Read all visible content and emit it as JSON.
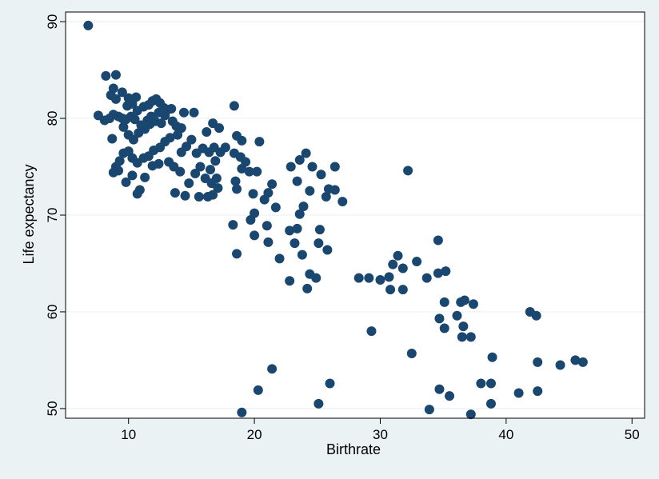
{
  "chart_data": {
    "type": "scatter",
    "title": "",
    "xlabel": "Birthrate",
    "ylabel": "Life expectancy",
    "xlim": [
      5,
      51
    ],
    "ylim": [
      49,
      91
    ],
    "xticks": [
      10,
      20,
      30,
      40,
      50
    ],
    "yticks": [
      50,
      60,
      70,
      80,
      90
    ],
    "grid": "horizontal",
    "marker_color": "#1a476f",
    "plot_background": "#ffffff",
    "outer_background": "#eaf2f3",
    "gridline_color": "#eaf2f3",
    "points": [
      [
        6.8,
        89.6
      ],
      [
        8.2,
        84.4
      ],
      [
        9.0,
        84.5
      ],
      [
        8.8,
        83.1
      ],
      [
        8.6,
        82.4
      ],
      [
        9.0,
        82.0
      ],
      [
        9.5,
        82.7
      ],
      [
        10.0,
        82.1
      ],
      [
        10.6,
        82.2
      ],
      [
        10.3,
        81.5
      ],
      [
        9.9,
        81.3
      ],
      [
        10.7,
        80.8
      ],
      [
        11.2,
        81.2
      ],
      [
        11.6,
        81.4
      ],
      [
        11.9,
        81.8
      ],
      [
        12.2,
        82.0
      ],
      [
        12.5,
        81.6
      ],
      [
        12.8,
        81.1
      ],
      [
        13.1,
        80.9
      ],
      [
        13.4,
        81.0
      ],
      [
        12.9,
        80.3
      ],
      [
        12.4,
        80.6
      ],
      [
        11.8,
        80.2
      ],
      [
        11.5,
        79.8
      ],
      [
        11.0,
        79.3
      ],
      [
        10.5,
        79.9
      ],
      [
        10.2,
        80.2
      ],
      [
        9.8,
        79.9
      ],
      [
        9.5,
        80.0
      ],
      [
        9.2,
        80.2
      ],
      [
        8.8,
        80.4
      ],
      [
        8.5,
        80.0
      ],
      [
        8.1,
        79.8
      ],
      [
        7.6,
        80.3
      ],
      [
        8.7,
        77.9
      ],
      [
        9.6,
        79.1
      ],
      [
        10.0,
        78.3
      ],
      [
        10.4,
        77.8
      ],
      [
        10.8,
        78.5
      ],
      [
        11.3,
        78.9
      ],
      [
        11.7,
        79.4
      ],
      [
        12.1,
        79.7
      ],
      [
        12.6,
        79.5
      ],
      [
        13.5,
        79.7
      ],
      [
        13.8,
        79.2
      ],
      [
        14.2,
        79.0
      ],
      [
        13.9,
        78.3
      ],
      [
        13.3,
        78.0
      ],
      [
        12.9,
        77.6
      ],
      [
        12.5,
        77.0
      ],
      [
        12.0,
        76.7
      ],
      [
        11.6,
        76.1
      ],
      [
        11.2,
        75.9
      ],
      [
        10.7,
        75.4
      ],
      [
        10.3,
        75.9
      ],
      [
        10.0,
        76.6
      ],
      [
        9.6,
        76.4
      ],
      [
        9.3,
        75.6
      ],
      [
        9.0,
        75.0
      ],
      [
        8.8,
        74.4
      ],
      [
        9.2,
        74.6
      ],
      [
        9.8,
        73.4
      ],
      [
        10.3,
        74.1
      ],
      [
        10.9,
        72.6
      ],
      [
        10.7,
        72.2
      ],
      [
        11.3,
        73.9
      ],
      [
        11.9,
        75.1
      ],
      [
        12.4,
        75.3
      ],
      [
        13.2,
        75.5
      ],
      [
        13.6,
        75.0
      ],
      [
        14.1,
        74.5
      ],
      [
        13.7,
        72.3
      ],
      [
        14.5,
        72.0
      ],
      [
        14.8,
        73.3
      ],
      [
        15.3,
        74.3
      ],
      [
        15.7,
        75.0
      ],
      [
        15.4,
        76.4
      ],
      [
        15.9,
        76.9
      ],
      [
        16.4,
        76.5
      ],
      [
        16.8,
        77.0
      ],
      [
        17.3,
        76.5
      ],
      [
        16.9,
        75.6
      ],
      [
        16.5,
        74.7
      ],
      [
        16.1,
        73.8
      ],
      [
        16.6,
        73.3
      ],
      [
        17.0,
        73.8
      ],
      [
        17.1,
        72.8
      ],
      [
        16.7,
        72.1
      ],
      [
        16.3,
        71.9
      ],
      [
        15.6,
        71.9
      ],
      [
        15.0,
        77.8
      ],
      [
        14.6,
        77.1
      ],
      [
        14.2,
        76.5
      ],
      [
        14.4,
        80.6
      ],
      [
        15.2,
        80.6
      ],
      [
        16.2,
        78.6
      ],
      [
        16.7,
        79.5
      ],
      [
        17.2,
        79.0
      ],
      [
        17.7,
        77.0
      ],
      [
        18.4,
        76.4
      ],
      [
        18.9,
        76.0
      ],
      [
        19.3,
        75.5
      ],
      [
        19.0,
        74.8
      ],
      [
        18.5,
        73.5
      ],
      [
        18.6,
        72.7
      ],
      [
        19.6,
        74.5
      ],
      [
        20.2,
        74.5
      ],
      [
        18.4,
        81.3
      ],
      [
        18.6,
        78.2
      ],
      [
        19.0,
        77.7
      ],
      [
        20.4,
        77.6
      ],
      [
        19.9,
        72.2
      ],
      [
        20.8,
        71.6
      ],
      [
        21.1,
        72.3
      ],
      [
        21.4,
        73.2
      ],
      [
        21.7,
        70.8
      ],
      [
        20.0,
        70.2
      ],
      [
        19.7,
        69.5
      ],
      [
        18.3,
        69.0
      ],
      [
        18.6,
        66.0
      ],
      [
        20.0,
        67.9
      ],
      [
        21.0,
        68.9
      ],
      [
        21.1,
        67.2
      ],
      [
        22.0,
        65.5
      ],
      [
        22.8,
        68.4
      ],
      [
        23.2,
        67.1
      ],
      [
        23.4,
        68.6
      ],
      [
        23.6,
        70.1
      ],
      [
        23.9,
        70.9
      ],
      [
        22.9,
        75.0
      ],
      [
        23.4,
        73.5
      ],
      [
        23.6,
        75.7
      ],
      [
        24.1,
        76.4
      ],
      [
        24.4,
        72.5
      ],
      [
        24.6,
        75.0
      ],
      [
        25.3,
        74.2
      ],
      [
        25.7,
        71.9
      ],
      [
        25.9,
        72.7
      ],
      [
        26.4,
        75.0
      ],
      [
        26.4,
        72.6
      ],
      [
        27.0,
        71.4
      ],
      [
        23.8,
        65.9
      ],
      [
        22.8,
        63.2
      ],
      [
        24.2,
        62.4
      ],
      [
        24.4,
        63.9
      ],
      [
        24.9,
        63.5
      ],
      [
        25.1,
        67.1
      ],
      [
        25.2,
        68.5
      ],
      [
        25.8,
        66.4
      ],
      [
        28.3,
        63.5
      ],
      [
        29.1,
        63.5
      ],
      [
        30.0,
        63.3
      ],
      [
        30.8,
        62.3
      ],
      [
        31.0,
        64.9
      ],
      [
        31.4,
        65.8
      ],
      [
        31.8,
        64.5
      ],
      [
        31.8,
        62.3
      ],
      [
        30.7,
        63.6
      ],
      [
        32.2,
        74.6
      ],
      [
        32.9,
        65.2
      ],
      [
        33.7,
        63.5
      ],
      [
        34.6,
        64.0
      ],
      [
        35.2,
        64.2
      ],
      [
        34.6,
        67.4
      ],
      [
        35.1,
        61.0
      ],
      [
        36.1,
        59.6
      ],
      [
        36.4,
        61.0
      ],
      [
        36.7,
        61.2
      ],
      [
        37.4,
        60.8
      ],
      [
        34.7,
        59.3
      ],
      [
        35.1,
        58.3
      ],
      [
        36.6,
        58.5
      ],
      [
        36.5,
        57.4
      ],
      [
        37.2,
        57.4
      ],
      [
        41.9,
        60.0
      ],
      [
        42.4,
        59.6
      ],
      [
        29.3,
        58.0
      ],
      [
        32.5,
        55.7
      ],
      [
        38.9,
        55.3
      ],
      [
        42.5,
        54.8
      ],
      [
        44.3,
        54.5
      ],
      [
        45.5,
        55.0
      ],
      [
        46.1,
        54.8
      ],
      [
        21.4,
        54.1
      ],
      [
        26.0,
        52.6
      ],
      [
        34.7,
        52.0
      ],
      [
        35.5,
        51.3
      ],
      [
        38.0,
        52.6
      ],
      [
        38.8,
        52.6
      ],
      [
        41.0,
        51.6
      ],
      [
        42.5,
        51.8
      ],
      [
        20.3,
        51.9
      ],
      [
        25.1,
        50.5
      ],
      [
        33.9,
        49.9
      ],
      [
        37.2,
        49.4
      ],
      [
        38.8,
        50.5
      ],
      [
        19.0,
        49.6
      ]
    ]
  }
}
